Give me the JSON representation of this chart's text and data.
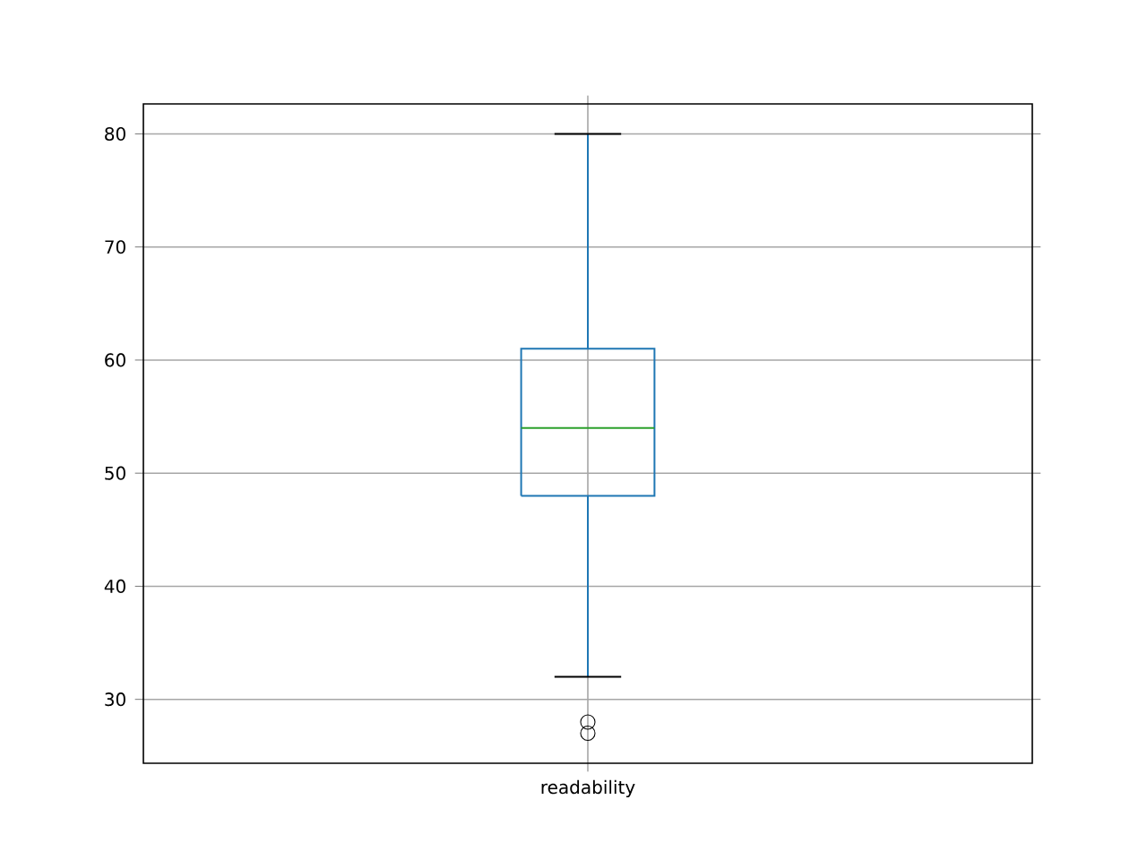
{
  "chart_data": {
    "type": "box",
    "categories": [
      "readability"
    ],
    "boxes": [
      {
        "low": 32,
        "q1": 48,
        "median": 54,
        "q3": 61,
        "high": 80,
        "outliers": [
          28,
          27
        ]
      }
    ],
    "color": "#1f77b4",
    "ylim": [
      24.35,
      82.65
    ],
    "yticks": [
      30,
      40,
      50,
      60,
      70,
      80
    ],
    "grid": true
  }
}
